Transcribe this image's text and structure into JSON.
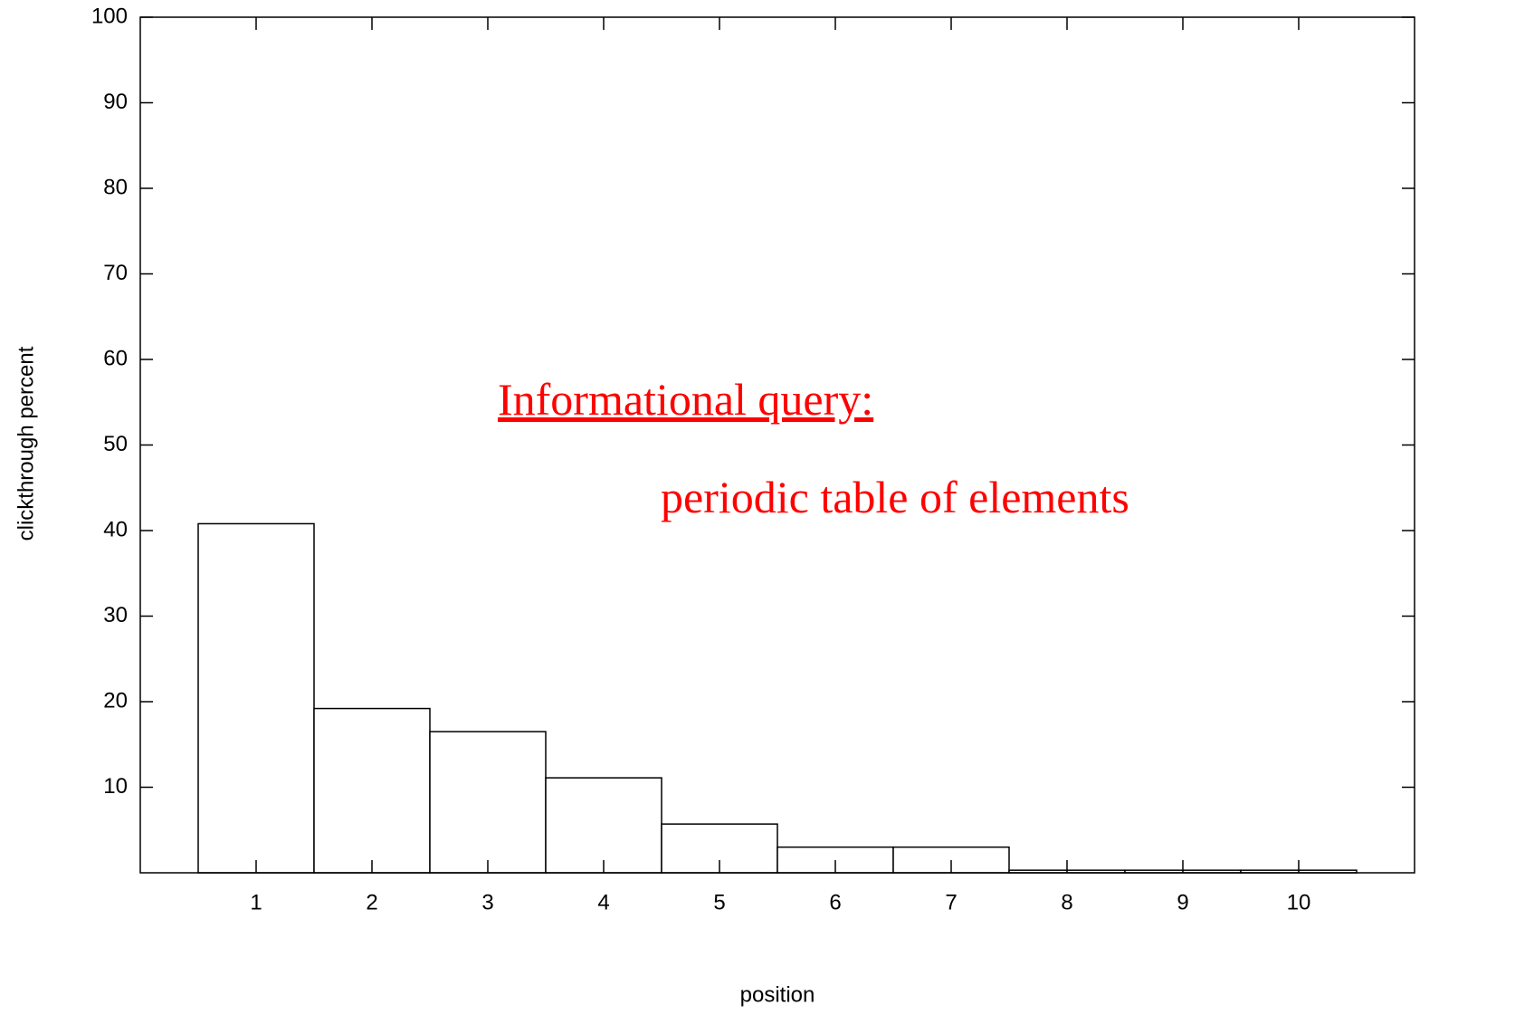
{
  "chart_data": {
    "type": "bar",
    "annotations": [
      "Informational query:",
      "periodic table of elements"
    ],
    "x_label": "position",
    "y_label": "clickthrough percent",
    "x": [
      1,
      2,
      3,
      4,
      5,
      6,
      7,
      8,
      9,
      10
    ],
    "values": [
      40.8,
      19.2,
      16.5,
      11.1,
      5.7,
      3.0,
      3.0,
      0.3,
      0.3,
      0.3
    ],
    "color": "#ffffff",
    "annotation_color": "#ff0000",
    "xlim": [
      0,
      11
    ],
    "xticks": [
      1,
      2,
      3,
      4,
      5,
      6,
      7,
      8,
      9,
      10
    ],
    "ylim": [
      0,
      100
    ],
    "yticks": [
      10,
      20,
      30,
      40,
      50,
      60,
      70,
      80,
      90,
      100
    ],
    "grid": false
  }
}
